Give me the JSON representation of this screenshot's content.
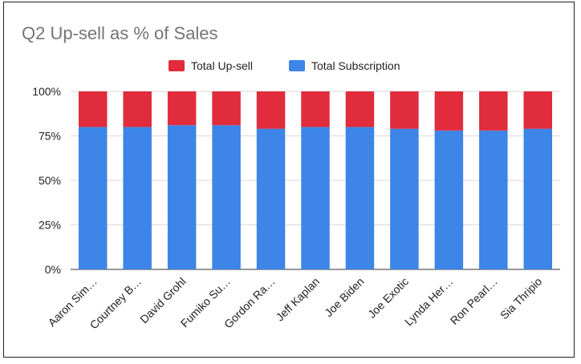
{
  "chart_data": {
    "type": "bar",
    "stacked": true,
    "percent_stacked": true,
    "title": "Q2 Up-sell as % of Sales",
    "categories": [
      "Aaron Sim…",
      "Courtney B…",
      "David Grohl",
      "Fumiko Su…",
      "Gordon Ra…",
      "Jeff Kaplan",
      "Joe Biden",
      "Joe Exotic",
      "Lynda Her…",
      "Ron Pearl…",
      "Sia Thripio"
    ],
    "series": [
      {
        "name": "Total Subscription",
        "color": "#3d85e6",
        "values": [
          80,
          80,
          81,
          81,
          79,
          80,
          80,
          79,
          78,
          78,
          79
        ]
      },
      {
        "name": "Total Up-sell",
        "color": "#e02c3c",
        "values": [
          20,
          20,
          19,
          19,
          21,
          20,
          20,
          21,
          22,
          22,
          21
        ]
      }
    ],
    "legend_order": [
      "Total Up-sell",
      "Total Subscription"
    ],
    "legend_position": "top",
    "y_ticks": [
      "0%",
      "25%",
      "50%",
      "75%",
      "100%"
    ],
    "ylim": [
      0,
      100
    ],
    "grid": true
  }
}
